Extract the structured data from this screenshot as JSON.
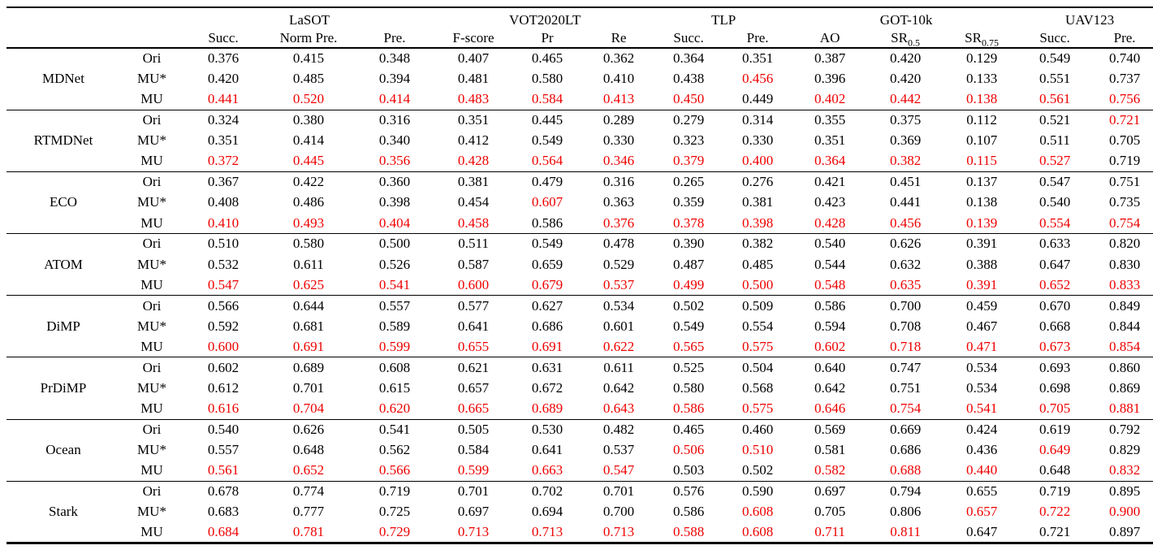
{
  "colors": {
    "highlight_red": "#ee0000",
    "text": "#000000",
    "background": "#ffffff"
  },
  "table": {
    "groups": [
      {
        "label": "LaSOT",
        "span": 3
      },
      {
        "label": "VOT2020LT",
        "span": 3
      },
      {
        "label": "TLP",
        "span": 2
      },
      {
        "label": "GOT-10k",
        "span": 3
      },
      {
        "label": "UAV123",
        "span": 2
      }
    ],
    "columns": [
      {
        "label": "Succ.",
        "sub": ""
      },
      {
        "label": "Norm Pre.",
        "sub": ""
      },
      {
        "label": "Pre.",
        "sub": ""
      },
      {
        "label": "F-score",
        "sub": ""
      },
      {
        "label": "Pr",
        "sub": ""
      },
      {
        "label": "Re",
        "sub": ""
      },
      {
        "label": "Succ.",
        "sub": ""
      },
      {
        "label": "Pre.",
        "sub": ""
      },
      {
        "label": "AO",
        "sub": ""
      },
      {
        "label": "SR",
        "sub": "0.5"
      },
      {
        "label": "SR",
        "sub": "0.75"
      },
      {
        "label": "Succ.",
        "sub": ""
      },
      {
        "label": "Pre.",
        "sub": ""
      }
    ],
    "trackers": [
      {
        "name": "MDNet",
        "rows": [
          {
            "variant": "Ori",
            "values": [
              "0.376",
              "0.415",
              "0.348",
              "0.407",
              "0.465",
              "0.362",
              "0.364",
              "0.351",
              "0.387",
              "0.420",
              "0.129",
              "0.549",
              "0.740"
            ],
            "red": [
              0,
              0,
              0,
              0,
              0,
              0,
              0,
              0,
              0,
              0,
              0,
              0,
              0
            ]
          },
          {
            "variant": "MU*",
            "values": [
              "0.420",
              "0.485",
              "0.394",
              "0.481",
              "0.580",
              "0.410",
              "0.438",
              "0.456",
              "0.396",
              "0.420",
              "0.133",
              "0.551",
              "0.737"
            ],
            "red": [
              0,
              0,
              0,
              0,
              0,
              0,
              0,
              1,
              0,
              0,
              0,
              0,
              0
            ]
          },
          {
            "variant": "MU",
            "values": [
              "0.441",
              "0.520",
              "0.414",
              "0.483",
              "0.584",
              "0.413",
              "0.450",
              "0.449",
              "0.402",
              "0.442",
              "0.138",
              "0.561",
              "0.756"
            ],
            "red": [
              1,
              1,
              1,
              1,
              1,
              1,
              1,
              0,
              1,
              1,
              1,
              1,
              1
            ]
          }
        ]
      },
      {
        "name": "RTMDNet",
        "rows": [
          {
            "variant": "Ori",
            "values": [
              "0.324",
              "0.380",
              "0.316",
              "0.351",
              "0.445",
              "0.289",
              "0.279",
              "0.314",
              "0.355",
              "0.375",
              "0.112",
              "0.521",
              "0.721"
            ],
            "red": [
              0,
              0,
              0,
              0,
              0,
              0,
              0,
              0,
              0,
              0,
              0,
              0,
              1
            ]
          },
          {
            "variant": "MU*",
            "values": [
              "0.351",
              "0.414",
              "0.340",
              "0.412",
              "0.549",
              "0.330",
              "0.323",
              "0.330",
              "0.351",
              "0.369",
              "0.107",
              "0.511",
              "0.705"
            ],
            "red": [
              0,
              0,
              0,
              0,
              0,
              0,
              0,
              0,
              0,
              0,
              0,
              0,
              0
            ]
          },
          {
            "variant": "MU",
            "values": [
              "0.372",
              "0.445",
              "0.356",
              "0.428",
              "0.564",
              "0.346",
              "0.379",
              "0.400",
              "0.364",
              "0.382",
              "0.115",
              "0.527",
              "0.719"
            ],
            "red": [
              1,
              1,
              1,
              1,
              1,
              1,
              1,
              1,
              1,
              1,
              1,
              1,
              0
            ]
          }
        ]
      },
      {
        "name": "ECO",
        "rows": [
          {
            "variant": "Ori",
            "values": [
              "0.367",
              "0.422",
              "0.360",
              "0.381",
              "0.479",
              "0.316",
              "0.265",
              "0.276",
              "0.421",
              "0.451",
              "0.137",
              "0.547",
              "0.751"
            ],
            "red": [
              0,
              0,
              0,
              0,
              0,
              0,
              0,
              0,
              0,
              0,
              0,
              0,
              0
            ]
          },
          {
            "variant": "MU*",
            "values": [
              "0.408",
              "0.486",
              "0.398",
              "0.454",
              "0.607",
              "0.363",
              "0.359",
              "0.381",
              "0.423",
              "0.441",
              "0.138",
              "0.540",
              "0.735"
            ],
            "red": [
              0,
              0,
              0,
              0,
              1,
              0,
              0,
              0,
              0,
              0,
              0,
              0,
              0
            ]
          },
          {
            "variant": "MU",
            "values": [
              "0.410",
              "0.493",
              "0.404",
              "0.458",
              "0.586",
              "0.376",
              "0.378",
              "0.398",
              "0.428",
              "0.456",
              "0.139",
              "0.554",
              "0.754"
            ],
            "red": [
              1,
              1,
              1,
              1,
              0,
              1,
              1,
              1,
              1,
              1,
              1,
              1,
              1
            ]
          }
        ]
      },
      {
        "name": "ATOM",
        "rows": [
          {
            "variant": "Ori",
            "values": [
              "0.510",
              "0.580",
              "0.500",
              "0.511",
              "0.549",
              "0.478",
              "0.390",
              "0.382",
              "0.540",
              "0.626",
              "0.391",
              "0.633",
              "0.820"
            ],
            "red": [
              0,
              0,
              0,
              0,
              0,
              0,
              0,
              0,
              0,
              0,
              0,
              0,
              0
            ]
          },
          {
            "variant": "MU*",
            "values": [
              "0.532",
              "0.611",
              "0.526",
              "0.587",
              "0.659",
              "0.529",
              "0.487",
              "0.485",
              "0.544",
              "0.632",
              "0.388",
              "0.647",
              "0.830"
            ],
            "red": [
              0,
              0,
              0,
              0,
              0,
              0,
              0,
              0,
              0,
              0,
              0,
              0,
              0
            ]
          },
          {
            "variant": "MU",
            "values": [
              "0.547",
              "0.625",
              "0.541",
              "0.600",
              "0.679",
              "0.537",
              "0.499",
              "0.500",
              "0.548",
              "0.635",
              "0.391",
              "0.652",
              "0.833"
            ],
            "red": [
              1,
              1,
              1,
              1,
              1,
              1,
              1,
              1,
              1,
              1,
              1,
              1,
              1
            ]
          }
        ]
      },
      {
        "name": "DiMP",
        "rows": [
          {
            "variant": "Ori",
            "values": [
              "0.566",
              "0.644",
              "0.557",
              "0.577",
              "0.627",
              "0.534",
              "0.502",
              "0.509",
              "0.586",
              "0.700",
              "0.459",
              "0.670",
              "0.849"
            ],
            "red": [
              0,
              0,
              0,
              0,
              0,
              0,
              0,
              0,
              0,
              0,
              0,
              0,
              0
            ]
          },
          {
            "variant": "MU*",
            "values": [
              "0.592",
              "0.681",
              "0.589",
              "0.641",
              "0.686",
              "0.601",
              "0.549",
              "0.554",
              "0.594",
              "0.708",
              "0.467",
              "0.668",
              "0.844"
            ],
            "red": [
              0,
              0,
              0,
              0,
              0,
              0,
              0,
              0,
              0,
              0,
              0,
              0,
              0
            ]
          },
          {
            "variant": "MU",
            "values": [
              "0.600",
              "0.691",
              "0.599",
              "0.655",
              "0.691",
              "0.622",
              "0.565",
              "0.575",
              "0.602",
              "0.718",
              "0.471",
              "0.673",
              "0.854"
            ],
            "red": [
              1,
              1,
              1,
              1,
              1,
              1,
              1,
              1,
              1,
              1,
              1,
              1,
              1
            ]
          }
        ]
      },
      {
        "name": "PrDiMP",
        "rows": [
          {
            "variant": "Ori",
            "values": [
              "0.602",
              "0.689",
              "0.608",
              "0.621",
              "0.631",
              "0.611",
              "0.525",
              "0.504",
              "0.640",
              "0.747",
              "0.534",
              "0.693",
              "0.860"
            ],
            "red": [
              0,
              0,
              0,
              0,
              0,
              0,
              0,
              0,
              0,
              0,
              0,
              0,
              0
            ]
          },
          {
            "variant": "MU*",
            "values": [
              "0.612",
              "0.701",
              "0.615",
              "0.657",
              "0.672",
              "0.642",
              "0.580",
              "0.568",
              "0.642",
              "0.751",
              "0.534",
              "0.698",
              "0.869"
            ],
            "red": [
              0,
              0,
              0,
              0,
              0,
              0,
              0,
              0,
              0,
              0,
              0,
              0,
              0
            ]
          },
          {
            "variant": "MU",
            "values": [
              "0.616",
              "0.704",
              "0.620",
              "0.665",
              "0.689",
              "0.643",
              "0.586",
              "0.575",
              "0.646",
              "0.754",
              "0.541",
              "0.705",
              "0.881"
            ],
            "red": [
              1,
              1,
              1,
              1,
              1,
              1,
              1,
              1,
              1,
              1,
              1,
              1,
              1
            ]
          }
        ]
      },
      {
        "name": "Ocean",
        "rows": [
          {
            "variant": "Ori",
            "values": [
              "0.540",
              "0.626",
              "0.541",
              "0.505",
              "0.530",
              "0.482",
              "0.465",
              "0.460",
              "0.569",
              "0.669",
              "0.424",
              "0.619",
              "0.792"
            ],
            "red": [
              0,
              0,
              0,
              0,
              0,
              0,
              0,
              0,
              0,
              0,
              0,
              0,
              0
            ]
          },
          {
            "variant": "MU*",
            "values": [
              "0.557",
              "0.648",
              "0.562",
              "0.584",
              "0.641",
              "0.537",
              "0.506",
              "0.510",
              "0.581",
              "0.686",
              "0.436",
              "0.649",
              "0.829"
            ],
            "red": [
              0,
              0,
              0,
              0,
              0,
              0,
              1,
              1,
              0,
              0,
              0,
              1,
              0
            ]
          },
          {
            "variant": "MU",
            "values": [
              "0.561",
              "0.652",
              "0.566",
              "0.599",
              "0.663",
              "0.547",
              "0.503",
              "0.502",
              "0.582",
              "0.688",
              "0.440",
              "0.648",
              "0.832"
            ],
            "red": [
              1,
              1,
              1,
              1,
              1,
              1,
              0,
              0,
              1,
              1,
              1,
              0,
              1
            ]
          }
        ]
      },
      {
        "name": "Stark",
        "rows": [
          {
            "variant": "Ori",
            "values": [
              "0.678",
              "0.774",
              "0.719",
              "0.701",
              "0.702",
              "0.701",
              "0.576",
              "0.590",
              "0.697",
              "0.794",
              "0.655",
              "0.719",
              "0.895"
            ],
            "red": [
              0,
              0,
              0,
              0,
              0,
              0,
              0,
              0,
              0,
              0,
              0,
              0,
              0
            ]
          },
          {
            "variant": "MU*",
            "values": [
              "0.683",
              "0.777",
              "0.725",
              "0.697",
              "0.694",
              "0.700",
              "0.586",
              "0.608",
              "0.705",
              "0.806",
              "0.657",
              "0.722",
              "0.900"
            ],
            "red": [
              0,
              0,
              0,
              0,
              0,
              0,
              0,
              1,
              0,
              0,
              1,
              1,
              1
            ]
          },
          {
            "variant": "MU",
            "values": [
              "0.684",
              "0.781",
              "0.729",
              "0.713",
              "0.713",
              "0.713",
              "0.588",
              "0.608",
              "0.711",
              "0.811",
              "0.647",
              "0.721",
              "0.897"
            ],
            "red": [
              1,
              1,
              1,
              1,
              1,
              1,
              1,
              1,
              1,
              1,
              0,
              0,
              0
            ]
          }
        ]
      }
    ]
  }
}
